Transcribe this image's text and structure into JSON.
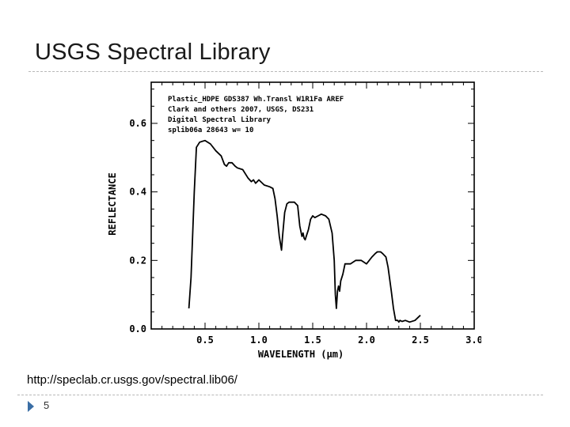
{
  "slide": {
    "title": "USGS Spectral Library",
    "caption": "http://speclab.cr.usgs.gov/spectral.lib06/",
    "page_number": "5"
  },
  "chart_data": {
    "type": "line",
    "title_lines": [
      "Plastic_HDPE GDS387 Wh.Transl W1R1Fa AREF",
      "Clark and others 2007, USGS, DS231",
      "Digital Spectral Library",
      "splib06a 28643 w= 10"
    ],
    "xlabel": "WAVELENGTH (μm)",
    "ylabel": "REFLECTANCE",
    "xlim": [
      0.0,
      3.0
    ],
    "ylim": [
      0.0,
      0.72
    ],
    "x_ticks": [
      0.5,
      1.0,
      1.5,
      2.0,
      2.5,
      3.0
    ],
    "x_tick_labels": [
      "0.5",
      "1.0",
      "1.5",
      "2.0",
      "2.5",
      "3.0"
    ],
    "y_ticks": [
      0.0,
      0.2,
      0.4,
      0.6
    ],
    "y_tick_labels": [
      "0.0",
      "0.2",
      "0.4",
      "0.6"
    ],
    "grid": false,
    "line_color": "#000000",
    "series": [
      {
        "x": [
          0.35,
          0.37,
          0.4,
          0.42,
          0.45,
          0.5,
          0.55,
          0.6,
          0.65,
          0.68,
          0.7,
          0.72,
          0.75,
          0.78,
          0.8,
          0.85,
          0.9,
          0.93,
          0.95,
          0.97,
          1.0,
          1.05,
          1.1,
          1.13,
          1.15,
          1.17,
          1.19,
          1.21,
          1.22,
          1.24,
          1.26,
          1.28,
          1.3,
          1.33,
          1.36,
          1.38,
          1.4,
          1.41,
          1.42,
          1.43,
          1.44,
          1.46,
          1.48,
          1.5,
          1.52,
          1.55,
          1.58,
          1.62,
          1.65,
          1.68,
          1.7,
          1.71,
          1.72,
          1.73,
          1.74,
          1.75,
          1.76,
          1.78,
          1.8,
          1.85,
          1.9,
          1.95,
          2.0,
          2.05,
          2.08,
          2.1,
          2.13,
          2.15,
          2.18,
          2.2,
          2.23,
          2.25,
          2.27,
          2.29,
          2.3,
          2.31,
          2.33,
          2.36,
          2.4,
          2.45,
          2.5
        ],
        "y": [
          0.06,
          0.15,
          0.4,
          0.53,
          0.545,
          0.55,
          0.54,
          0.52,
          0.505,
          0.48,
          0.475,
          0.485,
          0.485,
          0.475,
          0.47,
          0.465,
          0.44,
          0.43,
          0.435,
          0.425,
          0.435,
          0.42,
          0.415,
          0.41,
          0.38,
          0.33,
          0.27,
          0.23,
          0.27,
          0.34,
          0.365,
          0.37,
          0.37,
          0.37,
          0.36,
          0.3,
          0.27,
          0.28,
          0.265,
          0.26,
          0.27,
          0.29,
          0.32,
          0.33,
          0.325,
          0.33,
          0.335,
          0.33,
          0.32,
          0.28,
          0.2,
          0.1,
          0.06,
          0.11,
          0.125,
          0.11,
          0.14,
          0.16,
          0.19,
          0.19,
          0.2,
          0.2,
          0.19,
          0.21,
          0.22,
          0.225,
          0.225,
          0.22,
          0.21,
          0.18,
          0.11,
          0.06,
          0.025,
          0.025,
          0.02,
          0.025,
          0.022,
          0.025,
          0.02,
          0.025,
          0.04
        ]
      }
    ]
  },
  "icons": {
    "footer_bullet": "triangle-bullet-icon",
    "bullet_color": "#3a6ea5"
  }
}
